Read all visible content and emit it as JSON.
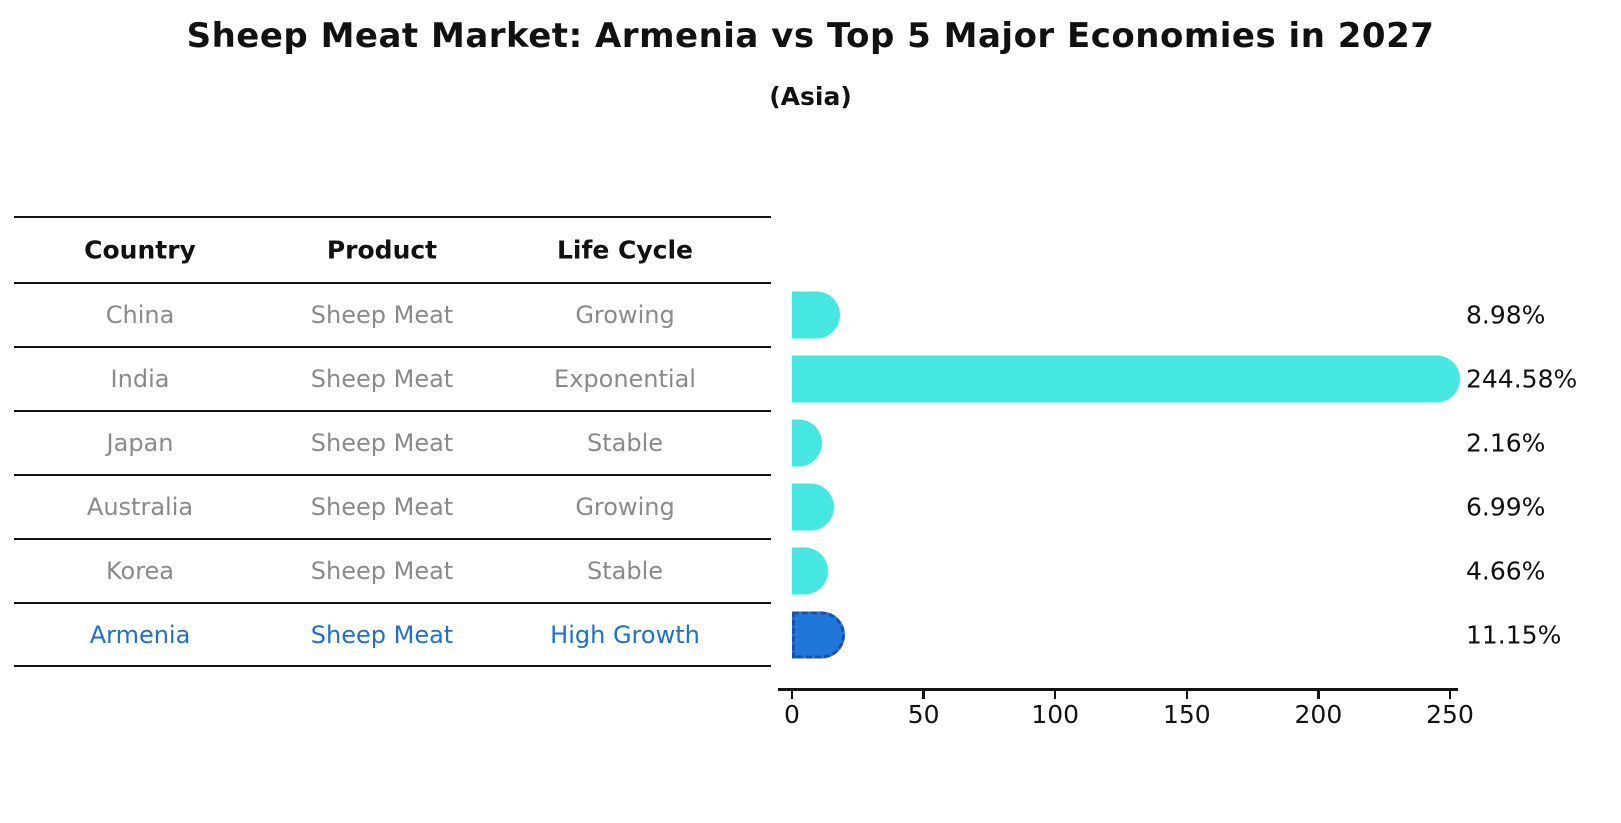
{
  "title": "Sheep Meat Market: Armenia vs Top 5 Major Economies in 2027",
  "subtitle": "(Asia)",
  "table": {
    "columns": [
      "Country",
      "Product",
      "Life Cycle"
    ],
    "rows": [
      {
        "country": "China",
        "product": "Sheep Meat",
        "life_cycle": "Growing",
        "highlight": false
      },
      {
        "country": "India",
        "product": "Sheep Meat",
        "life_cycle": "Exponential",
        "highlight": false
      },
      {
        "country": "Japan",
        "product": "Sheep Meat",
        "life_cycle": "Stable",
        "highlight": false
      },
      {
        "country": "Australia",
        "product": "Sheep Meat",
        "life_cycle": "Growing",
        "highlight": false
      },
      {
        "country": "Korea",
        "product": "Sheep Meat",
        "life_cycle": "Stable",
        "highlight": false
      },
      {
        "country": "Armenia",
        "product": "Sheep Meat",
        "life_cycle": "High Growth",
        "highlight": true
      }
    ]
  },
  "chart_data": {
    "type": "bar",
    "orientation": "horizontal",
    "categories": [
      "China",
      "India",
      "Japan",
      "Australia",
      "Korea",
      "Armenia"
    ],
    "values": [
      8.98,
      244.58,
      2.16,
      6.99,
      4.66,
      11.15
    ],
    "value_labels": [
      "8.98%",
      "244.58%",
      "2.16%",
      "6.99%",
      "4.66%",
      "11.15%"
    ],
    "x_ticks": [
      0,
      50,
      100,
      150,
      200,
      250
    ],
    "xlim": [
      0,
      250
    ],
    "grid": false,
    "legend": false,
    "highlight_category": "Armenia",
    "bar_color": "#47e7e1",
    "highlight_bar_color": "#2176d9",
    "highlight_edge_color": "#1b4fae",
    "highlight_text_color": "#1f6fd0",
    "row_text_color": "#8a8a8a"
  }
}
